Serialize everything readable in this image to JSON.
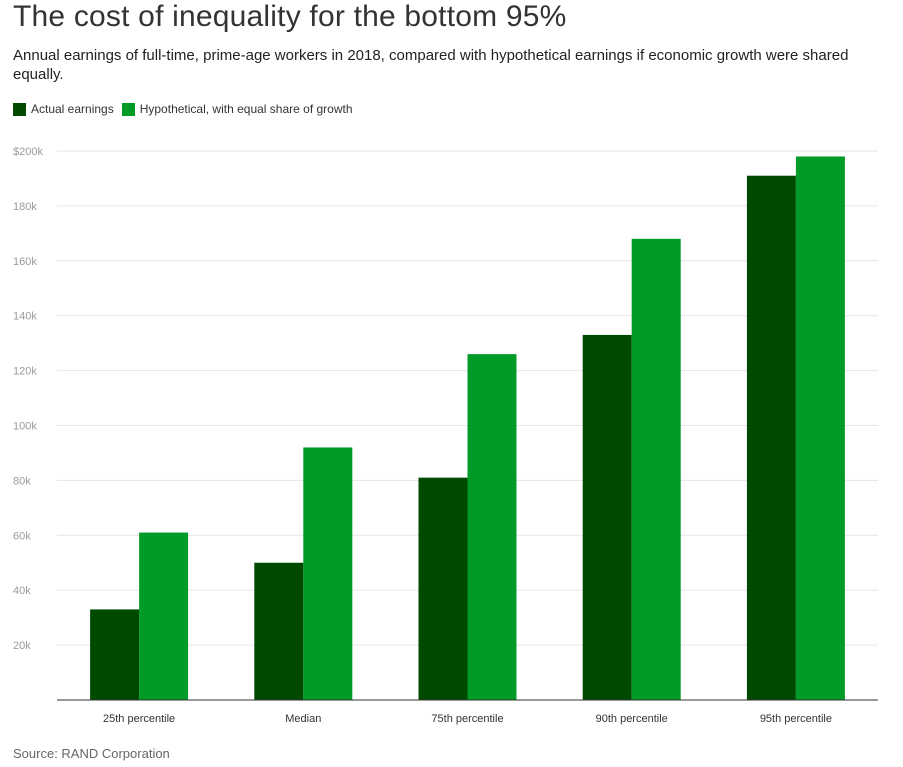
{
  "chart_data": {
    "type": "bar",
    "title": "The cost of inequality for the bottom 95%",
    "subtitle": "Annual earnings of full-time, prime-age workers in 2018, compared with hypothetical earnings if economic growth were shared equally.",
    "categories": [
      "25th percentile",
      "Median",
      "75th percentile",
      "90th percentile",
      "95th percentile"
    ],
    "series": [
      {
        "name": "Actual earnings",
        "color": "#004a00",
        "values": [
          33,
          50,
          81,
          133,
          191
        ]
      },
      {
        "name": "Hypothetical, with equal share of growth",
        "color": "#009a27",
        "values": [
          61,
          92,
          126,
          168,
          198
        ]
      }
    ],
    "ylim": [
      0,
      200
    ],
    "yticks": [
      {
        "value": 20,
        "label": "20k"
      },
      {
        "value": 40,
        "label": "40k"
      },
      {
        "value": 60,
        "label": "60k"
      },
      {
        "value": 80,
        "label": "80k"
      },
      {
        "value": 100,
        "label": "100k"
      },
      {
        "value": 120,
        "label": "120k"
      },
      {
        "value": 140,
        "label": "140k"
      },
      {
        "value": 160,
        "label": "160k"
      },
      {
        "value": 180,
        "label": "180k"
      },
      {
        "value": 200,
        "label": "$200k"
      }
    ],
    "grid": true,
    "legend_position": "top-left",
    "source": "Source: RAND Corporation"
  }
}
